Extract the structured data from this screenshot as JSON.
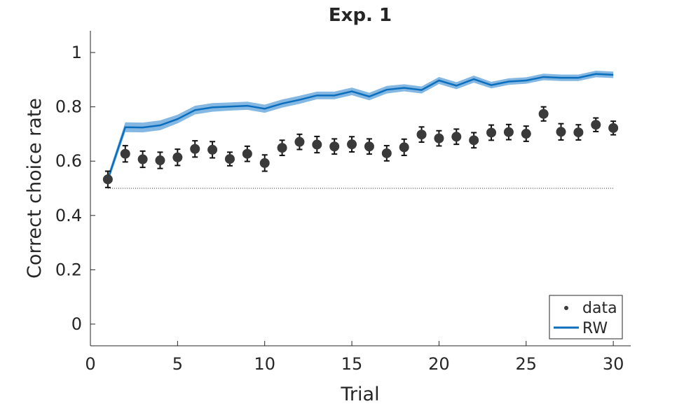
{
  "chart_data": {
    "type": "line",
    "title": "Exp. 1",
    "xlabel": "Trial",
    "ylabel": "Correct choice rate",
    "xlim": [
      0,
      31
    ],
    "ylim": [
      -0.08,
      1.08
    ],
    "xticks": [
      0,
      5,
      10,
      15,
      20,
      25,
      30
    ],
    "yticks": [
      0,
      0.2,
      0.4,
      0.6,
      0.8,
      1
    ],
    "ytick_labels": [
      "0",
      "0.2",
      "0.4",
      "0.6",
      "0.8",
      "1"
    ],
    "grid": false,
    "legend_position": "bottom-right",
    "chance_level": 0.5,
    "x": [
      1,
      2,
      3,
      4,
      5,
      6,
      7,
      8,
      9,
      10,
      11,
      12,
      13,
      14,
      15,
      16,
      17,
      18,
      19,
      20,
      21,
      22,
      23,
      24,
      25,
      26,
      27,
      28,
      29,
      30
    ],
    "series": [
      {
        "name": "data",
        "kind": "points-with-error",
        "color": "#3a3a3a",
        "values": [
          0.533,
          0.627,
          0.607,
          0.603,
          0.614,
          0.645,
          0.642,
          0.608,
          0.627,
          0.593,
          0.649,
          0.671,
          0.661,
          0.654,
          0.662,
          0.654,
          0.629,
          0.651,
          0.698,
          0.684,
          0.69,
          0.677,
          0.705,
          0.707,
          0.701,
          0.774,
          0.708,
          0.706,
          0.734,
          0.722
        ],
        "error": [
          0.03,
          0.03,
          0.03,
          0.03,
          0.03,
          0.03,
          0.03,
          0.025,
          0.028,
          0.03,
          0.028,
          0.028,
          0.03,
          0.028,
          0.028,
          0.028,
          0.028,
          0.03,
          0.028,
          0.028,
          0.028,
          0.028,
          0.028,
          0.028,
          0.028,
          0.026,
          0.03,
          0.028,
          0.025,
          0.025
        ]
      },
      {
        "name": "RW",
        "kind": "line-with-band",
        "color": "#0a6ebd",
        "band_color": "#84b8e3",
        "values": [
          0.533,
          0.725,
          0.724,
          0.732,
          0.755,
          0.788,
          0.798,
          0.801,
          0.804,
          0.793,
          0.812,
          0.826,
          0.842,
          0.842,
          0.857,
          0.838,
          0.863,
          0.87,
          0.862,
          0.897,
          0.878,
          0.902,
          0.88,
          0.893,
          0.897,
          0.91,
          0.907,
          0.907,
          0.921,
          0.918
        ],
        "band": [
          0.015,
          0.018,
          0.018,
          0.018,
          0.016,
          0.016,
          0.016,
          0.015,
          0.015,
          0.015,
          0.015,
          0.015,
          0.014,
          0.014,
          0.014,
          0.014,
          0.014,
          0.013,
          0.013,
          0.013,
          0.013,
          0.013,
          0.012,
          0.012,
          0.012,
          0.012,
          0.012,
          0.012,
          0.012,
          0.012
        ]
      }
    ]
  }
}
